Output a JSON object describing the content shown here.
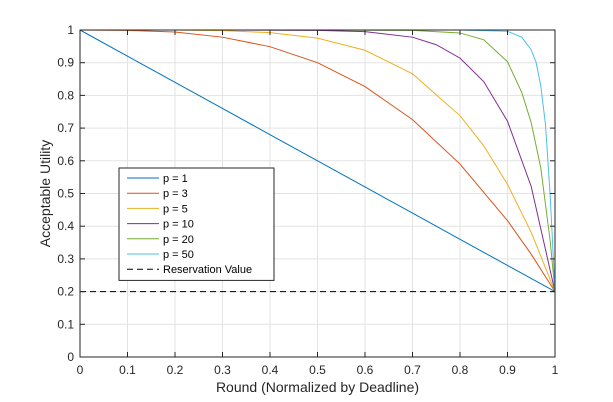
{
  "chart_data": {
    "type": "line",
    "xlabel": "Round (Normalized by Deadline)",
    "ylabel": "Acceptable Utility",
    "xlim": [
      0,
      1
    ],
    "ylim": [
      0,
      1
    ],
    "xticks": [
      "0",
      "0.1",
      "0.2",
      "0.3",
      "0.4",
      "0.5",
      "0.6",
      "0.7",
      "0.8",
      "0.9",
      "1"
    ],
    "yticks": [
      "0",
      "0.1",
      "0.2",
      "0.3",
      "0.4",
      "0.5",
      "0.6",
      "0.7",
      "0.8",
      "0.9",
      "1"
    ],
    "grid": true,
    "legend_position": "center-left",
    "series": [
      {
        "name": "p = 1",
        "color": "#0072BD",
        "style": "solid",
        "x": [
          0,
          0.1,
          0.2,
          0.3,
          0.4,
          0.5,
          0.6,
          0.7,
          0.8,
          0.9,
          1
        ],
        "y": [
          1.0,
          0.92,
          0.84,
          0.76,
          0.68,
          0.6,
          0.52,
          0.44,
          0.36,
          0.28,
          0.2
        ]
      },
      {
        "name": "p = 3",
        "color": "#D95319",
        "style": "solid",
        "x": [
          0,
          0.1,
          0.2,
          0.3,
          0.4,
          0.5,
          0.6,
          0.7,
          0.8,
          0.9,
          0.95,
          1
        ],
        "y": [
          1.0,
          0.999,
          0.994,
          0.978,
          0.949,
          0.9,
          0.827,
          0.726,
          0.59,
          0.417,
          0.314,
          0.2
        ]
      },
      {
        "name": "p = 5",
        "color": "#EDB120",
        "style": "solid",
        "x": [
          0,
          0.1,
          0.2,
          0.3,
          0.4,
          0.5,
          0.6,
          0.7,
          0.8,
          0.85,
          0.9,
          0.95,
          1
        ],
        "y": [
          1.0,
          1.0,
          1.0,
          0.998,
          0.992,
          0.975,
          0.938,
          0.866,
          0.738,
          0.646,
          0.528,
          0.381,
          0.2
        ]
      },
      {
        "name": "p = 10",
        "color": "#7E2F8E",
        "style": "solid",
        "x": [
          0,
          0.3,
          0.5,
          0.6,
          0.7,
          0.75,
          0.8,
          0.85,
          0.9,
          0.95,
          1
        ],
        "y": [
          1.0,
          1.0,
          0.999,
          0.995,
          0.978,
          0.955,
          0.914,
          0.842,
          0.721,
          0.521,
          0.2
        ]
      },
      {
        "name": "p = 20",
        "color": "#77AC30",
        "style": "solid",
        "x": [
          0,
          0.5,
          0.7,
          0.8,
          0.85,
          0.9,
          0.93,
          0.95,
          0.97,
          0.99,
          1
        ],
        "y": [
          1.0,
          1.0,
          0.999,
          0.991,
          0.97,
          0.903,
          0.809,
          0.716,
          0.579,
          0.353,
          0.2
        ]
      },
      {
        "name": "p = 50",
        "color": "#4DBEEE",
        "style": "solid",
        "x": [
          0,
          0.8,
          0.9,
          0.93,
          0.95,
          0.96,
          0.97,
          0.98,
          0.99,
          1
        ],
        "y": [
          1.0,
          1.0,
          0.996,
          0.978,
          0.939,
          0.902,
          0.83,
          0.71,
          0.49,
          0.2
        ]
      },
      {
        "name": "Reservation Value",
        "color": "#000000",
        "style": "dashed",
        "x": [
          0,
          1
        ],
        "y": [
          0.2,
          0.2
        ]
      }
    ]
  }
}
